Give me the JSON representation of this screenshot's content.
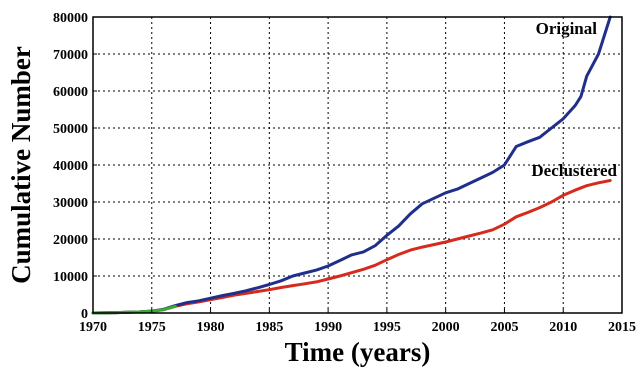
{
  "chart_data": {
    "type": "line",
    "xlabel": "Time (years)",
    "ylabel": "Cumulative Number",
    "xlim": [
      1970,
      2015
    ],
    "ylim": [
      0,
      80000
    ],
    "x_ticks": [
      1970,
      1975,
      1980,
      1985,
      1990,
      1995,
      2000,
      2005,
      2010,
      2015
    ],
    "y_ticks": [
      0,
      10000,
      20000,
      30000,
      40000,
      50000,
      60000,
      70000,
      80000
    ],
    "grid": true,
    "series": [
      {
        "name": "Original",
        "color": "#1f2f8a",
        "x": [
          1970,
          1972,
          1974,
          1975,
          1976,
          1977,
          1978,
          1979,
          1980,
          1981,
          1982,
          1983,
          1984,
          1985,
          1986,
          1987,
          1988,
          1989,
          1990,
          1991,
          1992,
          1993,
          1994,
          1995,
          1996,
          1997,
          1998,
          1999,
          2000,
          2001,
          2002,
          2003,
          2004,
          2005,
          2005.5,
          2006,
          2007,
          2008,
          2009,
          2010,
          2011,
          2011.5,
          2012,
          2013,
          2014
        ],
        "y": [
          0,
          100,
          300,
          500,
          1000,
          2000,
          2800,
          3300,
          4000,
          4700,
          5300,
          6000,
          6800,
          7700,
          8700,
          10000,
          10800,
          11600,
          12700,
          14200,
          15700,
          16500,
          18200,
          21000,
          23500,
          26800,
          29500,
          31000,
          32500,
          33500,
          35000,
          36500,
          38000,
          40000,
          42500,
          45000,
          46300,
          47500,
          50000,
          52500,
          56000,
          58500,
          64000,
          70000,
          80000
        ]
      },
      {
        "name": "Declustered",
        "color": "#d42b1e",
        "x": [
          1970,
          1972,
          1974,
          1975,
          1976,
          1977,
          1978,
          1979,
          1980,
          1981,
          1982,
          1983,
          1984,
          1985,
          1986,
          1987,
          1988,
          1989,
          1990,
          1991,
          1992,
          1993,
          1994,
          1995,
          1996,
          1997,
          1998,
          1999,
          2000,
          2001,
          2002,
          2003,
          2004,
          2005,
          2006,
          2007,
          2008,
          2009,
          2010,
          2011,
          2012,
          2013,
          2014
        ],
        "y": [
          0,
          100,
          300,
          500,
          900,
          1800,
          2500,
          3000,
          3600,
          4200,
          4800,
          5300,
          5800,
          6300,
          6900,
          7400,
          7900,
          8400,
          9200,
          10000,
          10900,
          11800,
          12900,
          14400,
          15800,
          17000,
          17800,
          18500,
          19200,
          20000,
          20800,
          21600,
          22500,
          24000,
          26000,
          27200,
          28500,
          30000,
          31800,
          33200,
          34400,
          35200,
          35800
        ]
      }
    ],
    "annotations": [
      "Original",
      "Declustered"
    ]
  }
}
